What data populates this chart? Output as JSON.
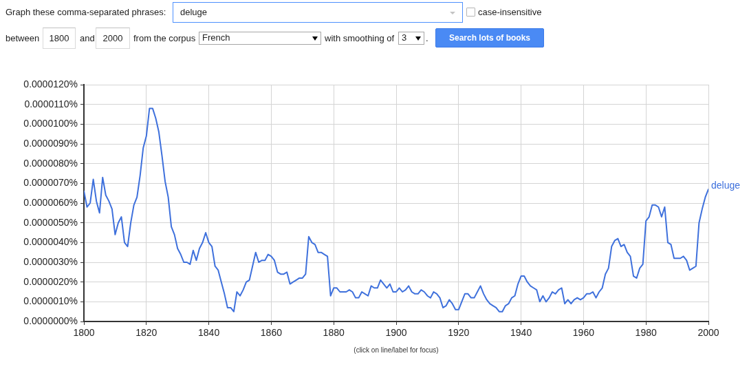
{
  "chart_data": {
    "type": "line",
    "x": [
      1800,
      1801,
      1802,
      1803,
      1804,
      1805,
      1806,
      1807,
      1808,
      1809,
      1810,
      1811,
      1812,
      1813,
      1814,
      1815,
      1816,
      1817,
      1818,
      1819,
      1820,
      1821,
      1822,
      1823,
      1824,
      1825,
      1826,
      1827,
      1828,
      1829,
      1830,
      1831,
      1832,
      1833,
      1834,
      1835,
      1836,
      1837,
      1838,
      1839,
      1840,
      1841,
      1842,
      1843,
      1844,
      1845,
      1846,
      1847,
      1848,
      1849,
      1850,
      1851,
      1852,
      1853,
      1854,
      1855,
      1856,
      1857,
      1858,
      1859,
      1860,
      1861,
      1862,
      1863,
      1864,
      1865,
      1866,
      1867,
      1868,
      1869,
      1870,
      1871,
      1872,
      1873,
      1874,
      1875,
      1876,
      1877,
      1878,
      1879,
      1880,
      1881,
      1882,
      1883,
      1884,
      1885,
      1886,
      1887,
      1888,
      1889,
      1890,
      1891,
      1892,
      1893,
      1894,
      1895,
      1896,
      1897,
      1898,
      1899,
      1900,
      1901,
      1902,
      1903,
      1904,
      1905,
      1906,
      1907,
      1908,
      1909,
      1910,
      1911,
      1912,
      1913,
      1914,
      1915,
      1916,
      1917,
      1918,
      1919,
      1920,
      1921,
      1922,
      1923,
      1924,
      1925,
      1926,
      1927,
      1928,
      1929,
      1930,
      1931,
      1932,
      1933,
      1934,
      1935,
      1936,
      1937,
      1938,
      1939,
      1940,
      1941,
      1942,
      1943,
      1944,
      1945,
      1946,
      1947,
      1948,
      1949,
      1950,
      1951,
      1952,
      1953,
      1954,
      1955,
      1956,
      1957,
      1958,
      1959,
      1960,
      1961,
      1962,
      1963,
      1964,
      1965,
      1966,
      1967,
      1968,
      1969,
      1970,
      1971,
      1972,
      1973,
      1974,
      1975,
      1976,
      1977,
      1978,
      1979,
      1980,
      1981,
      1982,
      1983,
      1984,
      1985,
      1986,
      1987,
      1988,
      1989,
      1990,
      1991,
      1992,
      1993,
      1994,
      1995,
      1996,
      1997,
      1998,
      1999,
      2000
    ],
    "series": [
      {
        "name": "deluge",
        "color": "#3e70dc",
        "values": [
          6.6e-06,
          5.8e-06,
          6e-06,
          7.2e-06,
          6.1e-06,
          5.5e-06,
          7.3e-06,
          6.4e-06,
          6.1e-06,
          5.7e-06,
          4.4e-06,
          5e-06,
          5.3e-06,
          4e-06,
          3.8e-06,
          5e-06,
          5.9e-06,
          6.3e-06,
          7.4e-06,
          8.8e-06,
          9.4e-06,
          1.08e-05,
          1.08e-05,
          1.03e-05,
          9.6e-06,
          8.4e-06,
          7.1e-06,
          6.3e-06,
          4.8e-06,
          4.4e-06,
          3.7e-06,
          3.4e-06,
          3e-06,
          3e-06,
          2.9e-06,
          3.6e-06,
          3.1e-06,
          3.7e-06,
          4e-06,
          4.5e-06,
          4e-06,
          3.8e-06,
          2.8e-06,
          2.6e-06,
          2e-06,
          1.4e-06,
          7e-07,
          7e-07,
          5e-07,
          1.5e-06,
          1.3e-06,
          1.6e-06,
          2e-06,
          2.1e-06,
          2.8e-06,
          3.5e-06,
          3e-06,
          3.1e-06,
          3.1e-06,
          3.4e-06,
          3.3e-06,
          3.1e-06,
          2.5e-06,
          2.4e-06,
          2.4e-06,
          2.5e-06,
          1.9e-06,
          2e-06,
          2.1e-06,
          2.2e-06,
          2.2e-06,
          2.4e-06,
          4.3e-06,
          4e-06,
          3.9e-06,
          3.5e-06,
          3.5e-06,
          3.4e-06,
          3.3e-06,
          1.3e-06,
          1.7e-06,
          1.7e-06,
          1.5e-06,
          1.5e-06,
          1.5e-06,
          1.6e-06,
          1.5e-06,
          1.2e-06,
          1.2e-06,
          1.5e-06,
          1.4e-06,
          1.3e-06,
          1.8e-06,
          1.7e-06,
          1.7e-06,
          2.1e-06,
          1.9e-06,
          1.7e-06,
          1.9e-06,
          1.5e-06,
          1.5e-06,
          1.7e-06,
          1.5e-06,
          1.6e-06,
          1.8e-06,
          1.5e-06,
          1.4e-06,
          1.4e-06,
          1.6e-06,
          1.5e-06,
          1.3e-06,
          1.2e-06,
          1.5e-06,
          1.4e-06,
          1.2e-06,
          7e-07,
          8e-07,
          1.1e-06,
          9e-07,
          6e-07,
          6e-07,
          1e-06,
          1.4e-06,
          1.4e-06,
          1.2e-06,
          1.2e-06,
          1.5e-06,
          1.8e-06,
          1.4e-06,
          1.1e-06,
          9e-07,
          8e-07,
          7e-07,
          5e-07,
          5e-07,
          8e-07,
          9e-07,
          1.2e-06,
          1.3e-06,
          1.9e-06,
          2.3e-06,
          2.3e-06,
          2e-06,
          1.8e-06,
          1.7e-06,
          1.6e-06,
          1e-06,
          1.3e-06,
          1e-06,
          1.2e-06,
          1.5e-06,
          1.4e-06,
          1.6e-06,
          1.7e-06,
          9e-07,
          1.1e-06,
          9e-07,
          1.1e-06,
          1.2e-06,
          1.1e-06,
          1.2e-06,
          1.4e-06,
          1.4e-06,
          1.5e-06,
          1.2e-06,
          1.5e-06,
          1.7e-06,
          2.4e-06,
          2.7e-06,
          3.8e-06,
          4.1e-06,
          4.2e-06,
          3.8e-06,
          3.9e-06,
          3.5e-06,
          3.3e-06,
          2.3e-06,
          2.2e-06,
          2.7e-06,
          2.9e-06,
          5.1e-06,
          5.3e-06,
          5.9e-06,
          5.9e-06,
          5.8e-06,
          5.3e-06,
          5.8e-06,
          4e-06,
          3.9e-06,
          3.2e-06,
          3.2e-06,
          3.2e-06,
          3.3e-06,
          3.1e-06,
          2.6e-06,
          2.7e-06,
          2.8e-06,
          5e-06,
          5.7e-06,
          6.3e-06,
          6.7e-06
        ]
      }
    ],
    "xlim": [
      1800,
      2000
    ],
    "xticks": [
      1800,
      1820,
      1840,
      1860,
      1880,
      1900,
      1920,
      1940,
      1960,
      1980,
      2000
    ],
    "ylim": [
      0,
      1.2e-05
    ],
    "yticks": [
      {
        "value": 0,
        "label": "0.0000000%"
      },
      {
        "value": 1e-06,
        "label": "0.0000010%"
      },
      {
        "value": 2e-06,
        "label": "0.0000020%"
      },
      {
        "value": 3e-06,
        "label": "0.0000030%"
      },
      {
        "value": 4e-06,
        "label": "0.0000040%"
      },
      {
        "value": 5e-06,
        "label": "0.0000050%"
      },
      {
        "value": 6e-06,
        "label": "0.0000060%"
      },
      {
        "value": 7e-06,
        "label": "0.0000070%"
      },
      {
        "value": 8e-06,
        "label": "0.0000080%"
      },
      {
        "value": 9e-06,
        "label": "0.0000090%"
      },
      {
        "value": 1e-05,
        "label": "0.0000100%"
      },
      {
        "value": 1.1e-05,
        "label": "0.0000110%"
      },
      {
        "value": 1.2e-05,
        "label": "0.0000120%"
      }
    ],
    "grid": true,
    "annotations": [
      "Graph these comma-separated phrases:",
      "deluge",
      "case-insensitive",
      "between",
      "1800",
      "and",
      "2000",
      "from the corpus",
      "French",
      "with smoothing of",
      "3",
      ".",
      "Search lots of books",
      "(click on line/label for focus)"
    ]
  }
}
